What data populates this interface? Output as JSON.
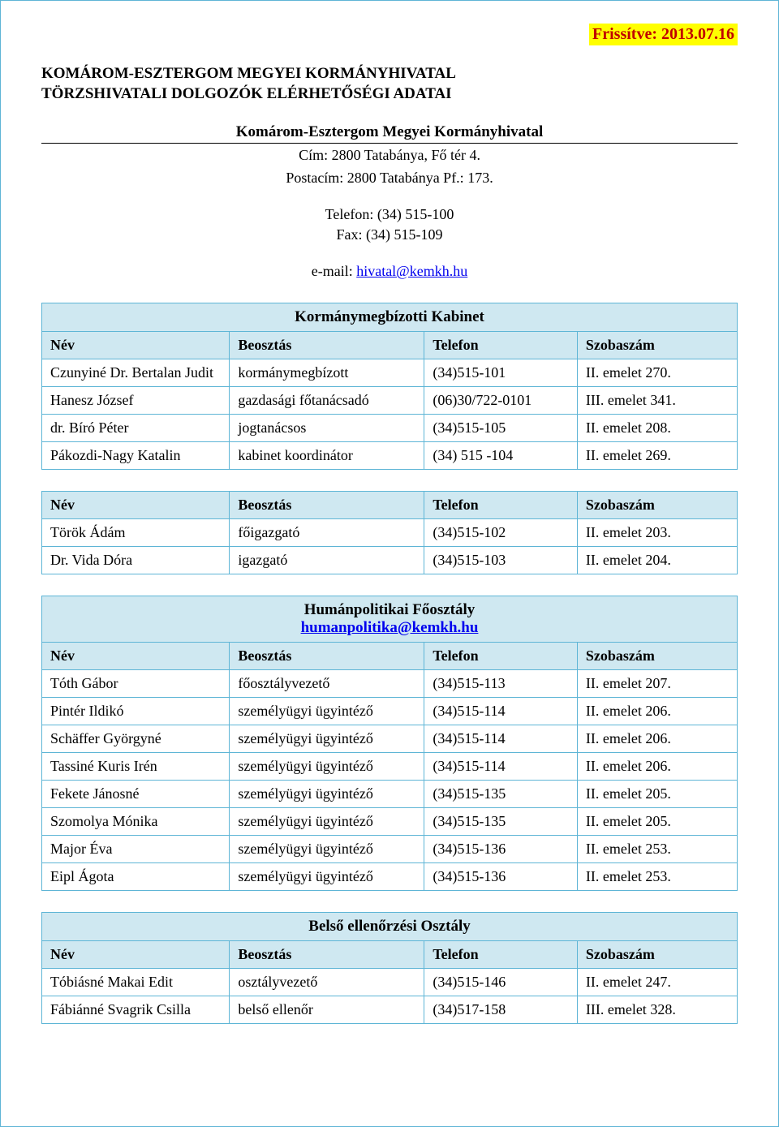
{
  "colors": {
    "border": "#5eb5d6",
    "header_bg": "#cfe8f1",
    "badge_bg": "#ffff00",
    "badge_text": "#c00000",
    "link": "#0000ee"
  },
  "update_label": "Frissítve: 2013.07.16",
  "title_line1": "KOMÁROM-ESZTERGOM MEGYEI KORMÁNYHIVATAL",
  "title_line2": "TÖRZSHIVATALI DOLGOZÓK ELÉRHETŐSÉGI ADATAI",
  "subtitle": "Komárom-Esztergom Megyei Kormányhivatal",
  "address_line": "Cím: 2800 Tatabánya, Fő tér 4.",
  "postal_line": "Postacím: 2800 Tatabánya Pf.: 173.",
  "phone_line": "Telefon: (34) 515-100",
  "fax_line": "Fax: (34) 515-109",
  "email_prefix": "e-mail: ",
  "email_link": "hivatal@kemkh.hu",
  "column_headers": {
    "name": "Név",
    "role": "Beosztás",
    "phone": "Telefon",
    "room": "Szobaszám"
  },
  "tables": [
    {
      "title": "Kormánymegbízotti Kabinet",
      "title_link": null,
      "rows": [
        {
          "name": "Czunyiné Dr. Bertalan Judit",
          "role": "kormánymegbízott",
          "phone": "(34)515-101",
          "room": "II. emelet 270."
        },
        {
          "name": "Hanesz József",
          "role": "gazdasági főtanácsadó",
          "phone": "(06)30/722-0101",
          "room": "III. emelet 341."
        },
        {
          "name": "dr. Bíró Péter",
          "role": "jogtanácsos",
          "phone": "(34)515-105",
          "room": "II. emelet 208."
        },
        {
          "name": "Pákozdi-Nagy Katalin",
          "role": "kabinet koordinátor",
          "phone": "(34) 515 -104",
          "room": "II. emelet 269."
        }
      ]
    },
    {
      "title": null,
      "title_link": null,
      "rows": [
        {
          "name": "Török Ádám",
          "role": "főigazgató",
          "phone": "(34)515-102",
          "room": "II. emelet 203."
        },
        {
          "name": "Dr. Vida Dóra",
          "role": "igazgató",
          "phone": "(34)515-103",
          "room": "II. emelet 204."
        }
      ]
    },
    {
      "title": "Humánpolitikai Főosztály",
      "title_link": "humanpolitika@kemkh.hu",
      "rows": [
        {
          "name": "Tóth Gábor",
          "role": "főosztályvezető",
          "phone": "(34)515-113",
          "room": "II. emelet 207."
        },
        {
          "name": "Pintér Ildikó",
          "role": "személyügyi ügyintéző",
          "phone": "(34)515-114",
          "room": "II. emelet 206."
        },
        {
          "name": "Schäffer Györgyné",
          "role": "személyügyi ügyintéző",
          "phone": "(34)515-114",
          "room": "II. emelet 206."
        },
        {
          "name": "Tassiné Kuris Irén",
          "role": "személyügyi ügyintéző",
          "phone": "(34)515-114",
          "room": "II. emelet 206."
        },
        {
          "name": "Fekete Jánosné",
          "role": "személyügyi ügyintéző",
          "phone": "(34)515-135",
          "room": "II. emelet 205."
        },
        {
          "name": "Szomolya Mónika",
          "role": "személyügyi ügyintéző",
          "phone": "(34)515-135",
          "room": "II. emelet 205."
        },
        {
          "name": "Major Éva",
          "role": "személyügyi ügyintéző",
          "phone": "(34)515-136",
          "room": "II. emelet 253."
        },
        {
          "name": "Eipl Ágota",
          "role": "személyügyi ügyintéző",
          "phone": "(34)515-136",
          "room": "II. emelet 253."
        }
      ]
    },
    {
      "title": "Belső ellenőrzési Osztály",
      "title_link": null,
      "rows": [
        {
          "name": "Tóbiásné Makai Edit",
          "role": "osztályvezető",
          "phone": "(34)515-146",
          "room": "II. emelet 247."
        },
        {
          "name": "Fábiánné Svagrik Csilla",
          "role": "belső ellenőr",
          "phone": "(34)517-158",
          "room": "III. emelet 328."
        }
      ]
    }
  ]
}
